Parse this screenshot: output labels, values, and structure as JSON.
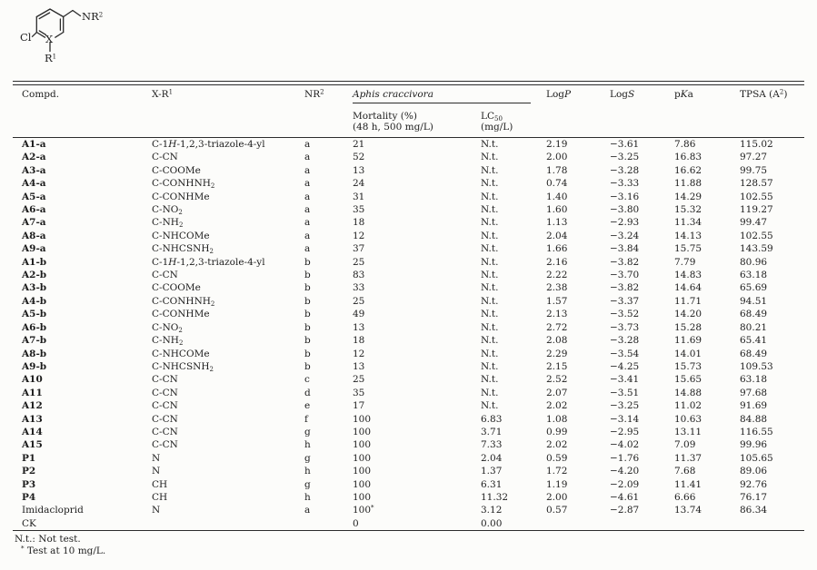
{
  "structure": {
    "cl": "Cl",
    "x": "X",
    "r1": [
      "R",
      {
        "sup": "1"
      }
    ],
    "nr2": [
      "NR",
      {
        "sup": "2"
      }
    ]
  },
  "table": {
    "columns": [
      "compd",
      "xr1",
      "nr2",
      "mortality",
      "lc50",
      "logp",
      "logs",
      "pka",
      "tpsa"
    ],
    "header": {
      "compd": "Compd.",
      "xr1": [
        "X-R",
        {
          "sup": "1"
        }
      ],
      "nr2": [
        "NR",
        {
          "sup": "2"
        }
      ],
      "aphis": "Aphis craccivora",
      "mortality1": "Mortality (%)",
      "mortality2": "(48 h, 500 mg/L)",
      "lc50": [
        "LC",
        {
          "sub": "50"
        }
      ],
      "lc50_unit": "(mg/L)",
      "logp": [
        "Log",
        {
          "i": "P"
        }
      ],
      "logs": [
        "Log",
        {
          "i": "S"
        }
      ],
      "pka": [
        "p",
        {
          "i": "K"
        },
        "a"
      ],
      "tpsa": [
        "TPSA (A",
        {
          "sup": "2"
        },
        ")"
      ]
    },
    "rows": [
      {
        "bold": true,
        "cells": [
          "A1-a",
          [
            "C-1",
            {
              "i": "H"
            },
            "-1,2,3-triazole-4-yl"
          ],
          "a",
          "21",
          "N.t.",
          "2.19",
          "−3.61",
          "7.86",
          "115.02"
        ]
      },
      {
        "bold": true,
        "cells": [
          "A2-a",
          "C-CN",
          "a",
          "52",
          "N.t.",
          "2.00",
          "−3.25",
          "16.83",
          "97.27"
        ]
      },
      {
        "bold": true,
        "cells": [
          "A3-a",
          "C-COOMe",
          "a",
          "13",
          "N.t.",
          "1.78",
          "−3.28",
          "16.62",
          "99.75"
        ]
      },
      {
        "bold": true,
        "cells": [
          "A4-a",
          [
            "C-CONHNH",
            {
              "sub": "2"
            }
          ],
          "a",
          "24",
          "N.t.",
          "0.74",
          "−3.33",
          "11.88",
          "128.57"
        ]
      },
      {
        "bold": true,
        "cells": [
          "A5-a",
          "C-CONHMe",
          "a",
          "31",
          "N.t.",
          "1.40",
          "−3.16",
          "14.29",
          "102.55"
        ]
      },
      {
        "bold": true,
        "cells": [
          "A6-a",
          [
            "C-NO",
            {
              "sub": "2"
            }
          ],
          "a",
          "35",
          "N.t.",
          "1.60",
          "−3.80",
          "15.32",
          "119.27"
        ]
      },
      {
        "bold": true,
        "cells": [
          "A7-a",
          [
            "C-NH",
            {
              "sub": "2"
            }
          ],
          "a",
          "18",
          "N.t.",
          "1.13",
          "−2.93",
          "11.34",
          "99.47"
        ]
      },
      {
        "bold": true,
        "cells": [
          "A8-a",
          "C-NHCOMe",
          "a",
          "12",
          "N.t.",
          "2.04",
          "−3.24",
          "14.13",
          "102.55"
        ]
      },
      {
        "bold": true,
        "cells": [
          "A9-a",
          [
            "C-NHCSNH",
            {
              "sub": "2"
            }
          ],
          "a",
          "37",
          "N.t.",
          "1.66",
          "−3.84",
          "15.75",
          "143.59"
        ]
      },
      {
        "bold": true,
        "cells": [
          "A1-b",
          [
            "C-1",
            {
              "i": "H"
            },
            "-1,2,3-triazole-4-yl"
          ],
          "b",
          "25",
          "N.t.",
          "2.16",
          "−3.82",
          "7.79",
          "80.96"
        ]
      },
      {
        "bold": true,
        "cells": [
          "A2-b",
          "C-CN",
          "b",
          "83",
          "N.t.",
          "2.22",
          "−3.70",
          "14.83",
          "63.18"
        ]
      },
      {
        "bold": true,
        "cells": [
          "A3-b",
          "C-COOMe",
          "b",
          "33",
          "N.t.",
          "2.38",
          "−3.82",
          "14.64",
          "65.69"
        ]
      },
      {
        "bold": true,
        "cells": [
          "A4-b",
          [
            "C-CONHNH",
            {
              "sub": "2"
            }
          ],
          "b",
          "25",
          "N.t.",
          "1.57",
          "−3.37",
          "11.71",
          "94.51"
        ]
      },
      {
        "bold": true,
        "cells": [
          "A5-b",
          "C-CONHMe",
          "b",
          "49",
          "N.t.",
          "2.13",
          "−3.52",
          "14.20",
          "68.49"
        ]
      },
      {
        "bold": true,
        "cells": [
          "A6-b",
          [
            "C-NO",
            {
              "sub": "2"
            }
          ],
          "b",
          "13",
          "N.t.",
          "2.72",
          "−3.73",
          "15.28",
          "80.21"
        ]
      },
      {
        "bold": true,
        "cells": [
          "A7-b",
          [
            "C-NH",
            {
              "sub": "2"
            }
          ],
          "b",
          "18",
          "N.t.",
          "2.08",
          "−3.28",
          "11.69",
          "65.41"
        ]
      },
      {
        "bold": true,
        "cells": [
          "A8-b",
          "C-NHCOMe",
          "b",
          "12",
          "N.t.",
          "2.29",
          "−3.54",
          "14.01",
          "68.49"
        ]
      },
      {
        "bold": true,
        "cells": [
          "A9-b",
          [
            "C-NHCSNH",
            {
              "sub": "2"
            }
          ],
          "b",
          "13",
          "N.t.",
          "2.15",
          "−4.25",
          "15.73",
          "109.53"
        ]
      },
      {
        "bold": true,
        "cells": [
          "A10",
          "C-CN",
          "c",
          "25",
          "N.t.",
          "2.52",
          "−3.41",
          "15.65",
          "63.18"
        ]
      },
      {
        "bold": true,
        "cells": [
          "A11",
          "C-CN",
          "d",
          "35",
          "N.t.",
          "2.07",
          "−3.51",
          "14.88",
          "97.68"
        ]
      },
      {
        "bold": true,
        "cells": [
          "A12",
          "C-CN",
          "e",
          "17",
          "N.t.",
          "2.02",
          "−3.25",
          "11.02",
          "91.69"
        ]
      },
      {
        "bold": true,
        "cells": [
          "A13",
          "C-CN",
          "f",
          "100",
          "6.83",
          "1.08",
          "−3.14",
          "10.63",
          "84.88"
        ]
      },
      {
        "bold": true,
        "cells": [
          "A14",
          "C-CN",
          "g",
          "100",
          "3.71",
          "0.99",
          "−2.95",
          "13.11",
          "116.55"
        ]
      },
      {
        "bold": true,
        "cells": [
          "A15",
          "C-CN",
          "h",
          "100",
          "7.33",
          "2.02",
          "−4.02",
          "7.09",
          "99.96"
        ]
      },
      {
        "bold": true,
        "cells": [
          "P1",
          "N",
          "g",
          "100",
          "2.04",
          "0.59",
          "−1.76",
          "11.37",
          "105.65"
        ]
      },
      {
        "bold": true,
        "cells": [
          "P2",
          "N",
          "h",
          "100",
          "1.37",
          "1.72",
          "−4.20",
          "7.68",
          "89.06"
        ]
      },
      {
        "bold": true,
        "cells": [
          "P3",
          "CH",
          "g",
          "100",
          "6.31",
          "1.19",
          "−2.09",
          "11.41",
          "92.76"
        ]
      },
      {
        "bold": true,
        "cells": [
          "P4",
          "CH",
          "h",
          "100",
          "11.32",
          "2.00",
          "−4.61",
          "6.66",
          "76.17"
        ]
      },
      {
        "bold": false,
        "cells": [
          "Imidacloprid",
          "N",
          "a",
          [
            "100",
            {
              "sup": "*"
            }
          ],
          "3.12",
          "0.57",
          "−2.87",
          "13.74",
          "86.34"
        ]
      },
      {
        "bold": false,
        "cells": [
          "CK",
          "",
          "",
          "0",
          "0.00",
          "",
          "",
          "",
          ""
        ]
      }
    ]
  },
  "footnotes": {
    "line1": "N.t.: Not test.",
    "line2": [
      {
        "sup": "*"
      },
      " Test at 10 mg/L."
    ]
  }
}
